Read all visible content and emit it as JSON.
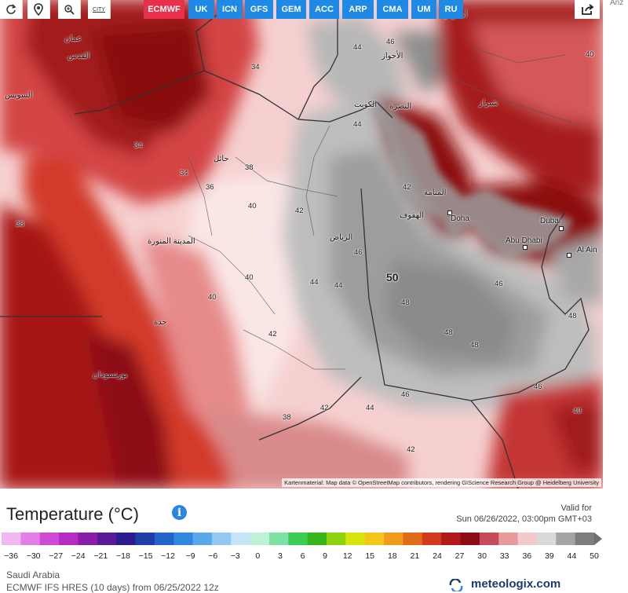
{
  "toolbar": {
    "city_label": "CITY",
    "models": [
      {
        "label": "ECMWF",
        "active": true
      },
      {
        "label": "UK"
      },
      {
        "label": "ICN"
      },
      {
        "label": "GFS"
      },
      {
        "label": "GEM"
      },
      {
        "label": "ACC"
      },
      {
        "label": "ARP"
      },
      {
        "label": "CMA"
      },
      {
        "label": "UM"
      },
      {
        "label": "RU"
      }
    ],
    "side_text": "Anz"
  },
  "map": {
    "attribution": "Kartenmaterial: Map data © OpenStreetMap contributors, rendering GIScience Research Group @ Heidelberg University",
    "max_value_label": "50",
    "cities": [
      "Doha",
      "Abu Dhabi",
      "Dubai",
      "Al Ain"
    ],
    "arabic_labels": [
      "عمان",
      "القدس",
      "السويس",
      "حائل",
      "المدينة المنورة",
      "جدة",
      "بورتسودان",
      "الرياض",
      "الهفوف",
      "المنامة",
      "الكويت",
      "البصرة",
      "شيراز",
      "أصفهان",
      "الأحواز"
    ],
    "isotherm_values": [
      "34",
      "36",
      "38",
      "40",
      "42",
      "44",
      "46",
      "48",
      "50"
    ],
    "colors": {
      "hot_dark": "#8f0a0f",
      "hot": "#c62a2a",
      "warm": "#e86b6b",
      "pink": "#f3b8b8",
      "light": "#f8dede",
      "grey_light": "#d8d8d8",
      "grey": "#a9a9a9",
      "grey_dark": "#8c8c8c"
    }
  },
  "legend": {
    "title": "Temperature",
    "unit": "(°C)",
    "valid_for_label": "Valid for",
    "valid_time": "Sun 06/26/2022, 03:00pm GMT+03",
    "scale_values": [
      "−36",
      "−30",
      "−27",
      "−24",
      "−21",
      "−18",
      "−15",
      "−12",
      "−9",
      "−6",
      "−3",
      "0",
      "3",
      "6",
      "9",
      "12",
      "15",
      "18",
      "21",
      "24",
      "27",
      "30",
      "33",
      "36",
      "39",
      "44",
      "50"
    ],
    "scale_colors": [
      "#f0b7f0",
      "#e37fe6",
      "#cf4bd6",
      "#b52cc5",
      "#8b1ea8",
      "#5a1a95",
      "#2a1d8c",
      "#1f3fa8",
      "#2364c8",
      "#2f87e0",
      "#5aa8ec",
      "#93c8f3",
      "#c7e3f8",
      "#bff0d8",
      "#7fe0a6",
      "#3ccc54",
      "#37b51b",
      "#8fd40f",
      "#d8e40e",
      "#f3c71a",
      "#f09b19",
      "#e26b19",
      "#d13a1a",
      "#b01a1a",
      "#8e0b12",
      "#c54a5a",
      "#e79a9a",
      "#f2caca",
      "#d9d9d9",
      "#a5a5a5",
      "#7d7d7d"
    ]
  },
  "footer": {
    "region": "Saudi Arabia",
    "model_info": "ECMWF IFS HRES (10 days) from 06/25/2022 12z",
    "brand": "meteologix.com"
  }
}
